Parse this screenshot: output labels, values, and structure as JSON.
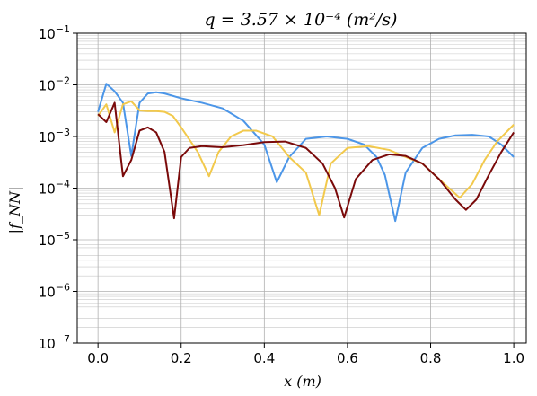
{
  "chart_data": {
    "type": "line",
    "title": "q = 3.57 × 10⁻⁴ (m²/s)",
    "xlabel": "x (m)",
    "ylabel": "|f_NN|",
    "xlim": [
      -0.05,
      1.03
    ],
    "ylim": [
      1e-07,
      0.1
    ],
    "yscale": "log",
    "grid": true,
    "xticks": [
      0.0,
      0.2,
      0.4,
      0.6,
      0.8,
      1.0
    ],
    "xtick_labels": [
      "0.0",
      "0.2",
      "0.4",
      "0.6",
      "0.8",
      "1.0"
    ],
    "ytick_labels": [
      {
        "base": "10",
        "exp": "−7"
      },
      {
        "base": "10",
        "exp": "−6"
      },
      {
        "base": "10",
        "exp": "−5"
      },
      {
        "base": "10",
        "exp": "−4"
      },
      {
        "base": "10",
        "exp": "−3"
      },
      {
        "base": "10",
        "exp": "−2"
      },
      {
        "base": "10",
        "exp": "−1"
      }
    ],
    "series": [
      {
        "color": "#4c96e8",
        "x": [
          0.0,
          0.02,
          0.04,
          0.06,
          0.08,
          0.1,
          0.12,
          0.14,
          0.16,
          0.2,
          0.25,
          0.3,
          0.35,
          0.4,
          0.43,
          0.46,
          0.5,
          0.55,
          0.6,
          0.64,
          0.67,
          0.69,
          0.715,
          0.74,
          0.78,
          0.82,
          0.86,
          0.9,
          0.94,
          0.97,
          1.0
        ],
        "y": [
          0.003,
          0.0105,
          0.0075,
          0.0045,
          0.00042,
          0.0045,
          0.0068,
          0.0072,
          0.0068,
          0.0055,
          0.0045,
          0.0035,
          0.002,
          0.0007,
          0.00013,
          0.0004,
          0.0009,
          0.001,
          0.0009,
          0.0007,
          0.0004,
          0.00018,
          2.3e-05,
          0.0002,
          0.0006,
          0.0009,
          0.00105,
          0.00108,
          0.001,
          0.0007,
          0.0004
        ]
      },
      {
        "color": "#f2c94c",
        "x": [
          0.0,
          0.02,
          0.04,
          0.06,
          0.08,
          0.1,
          0.12,
          0.14,
          0.16,
          0.18,
          0.2,
          0.24,
          0.267,
          0.29,
          0.32,
          0.35,
          0.38,
          0.42,
          0.46,
          0.5,
          0.532,
          0.56,
          0.6,
          0.65,
          0.7,
          0.74,
          0.78,
          0.82,
          0.87,
          0.9,
          0.93,
          0.96,
          1.0
        ],
        "y": [
          0.0025,
          0.0042,
          0.0012,
          0.0042,
          0.0048,
          0.0032,
          0.0031,
          0.0031,
          0.003,
          0.0025,
          0.0015,
          0.0005,
          0.00017,
          0.0005,
          0.001,
          0.0013,
          0.0013,
          0.001,
          0.0004,
          0.0002,
          3e-05,
          0.0003,
          0.0006,
          0.00065,
          0.00055,
          0.0004,
          0.0003,
          0.00015,
          6.5e-05,
          0.00012,
          0.00035,
          0.0008,
          0.0017
        ]
      },
      {
        "color": "#7a0a0a",
        "x": [
          0.0,
          0.02,
          0.04,
          0.06,
          0.08,
          0.1,
          0.12,
          0.14,
          0.16,
          0.183,
          0.2,
          0.22,
          0.25,
          0.3,
          0.35,
          0.4,
          0.45,
          0.5,
          0.54,
          0.57,
          0.592,
          0.62,
          0.66,
          0.7,
          0.74,
          0.78,
          0.82,
          0.86,
          0.885,
          0.91,
          0.94,
          0.97,
          1.0
        ],
        "y": [
          0.0027,
          0.0019,
          0.0045,
          0.00017,
          0.00035,
          0.0013,
          0.0015,
          0.0012,
          0.0005,
          2.6e-05,
          0.0004,
          0.0006,
          0.00065,
          0.00062,
          0.00068,
          0.00078,
          0.0008,
          0.0006,
          0.0003,
          0.0001,
          2.7e-05,
          0.00015,
          0.00035,
          0.00045,
          0.00042,
          0.0003,
          0.00015,
          6e-05,
          3.8e-05,
          6e-05,
          0.00018,
          0.0005,
          0.0012
        ]
      }
    ]
  }
}
